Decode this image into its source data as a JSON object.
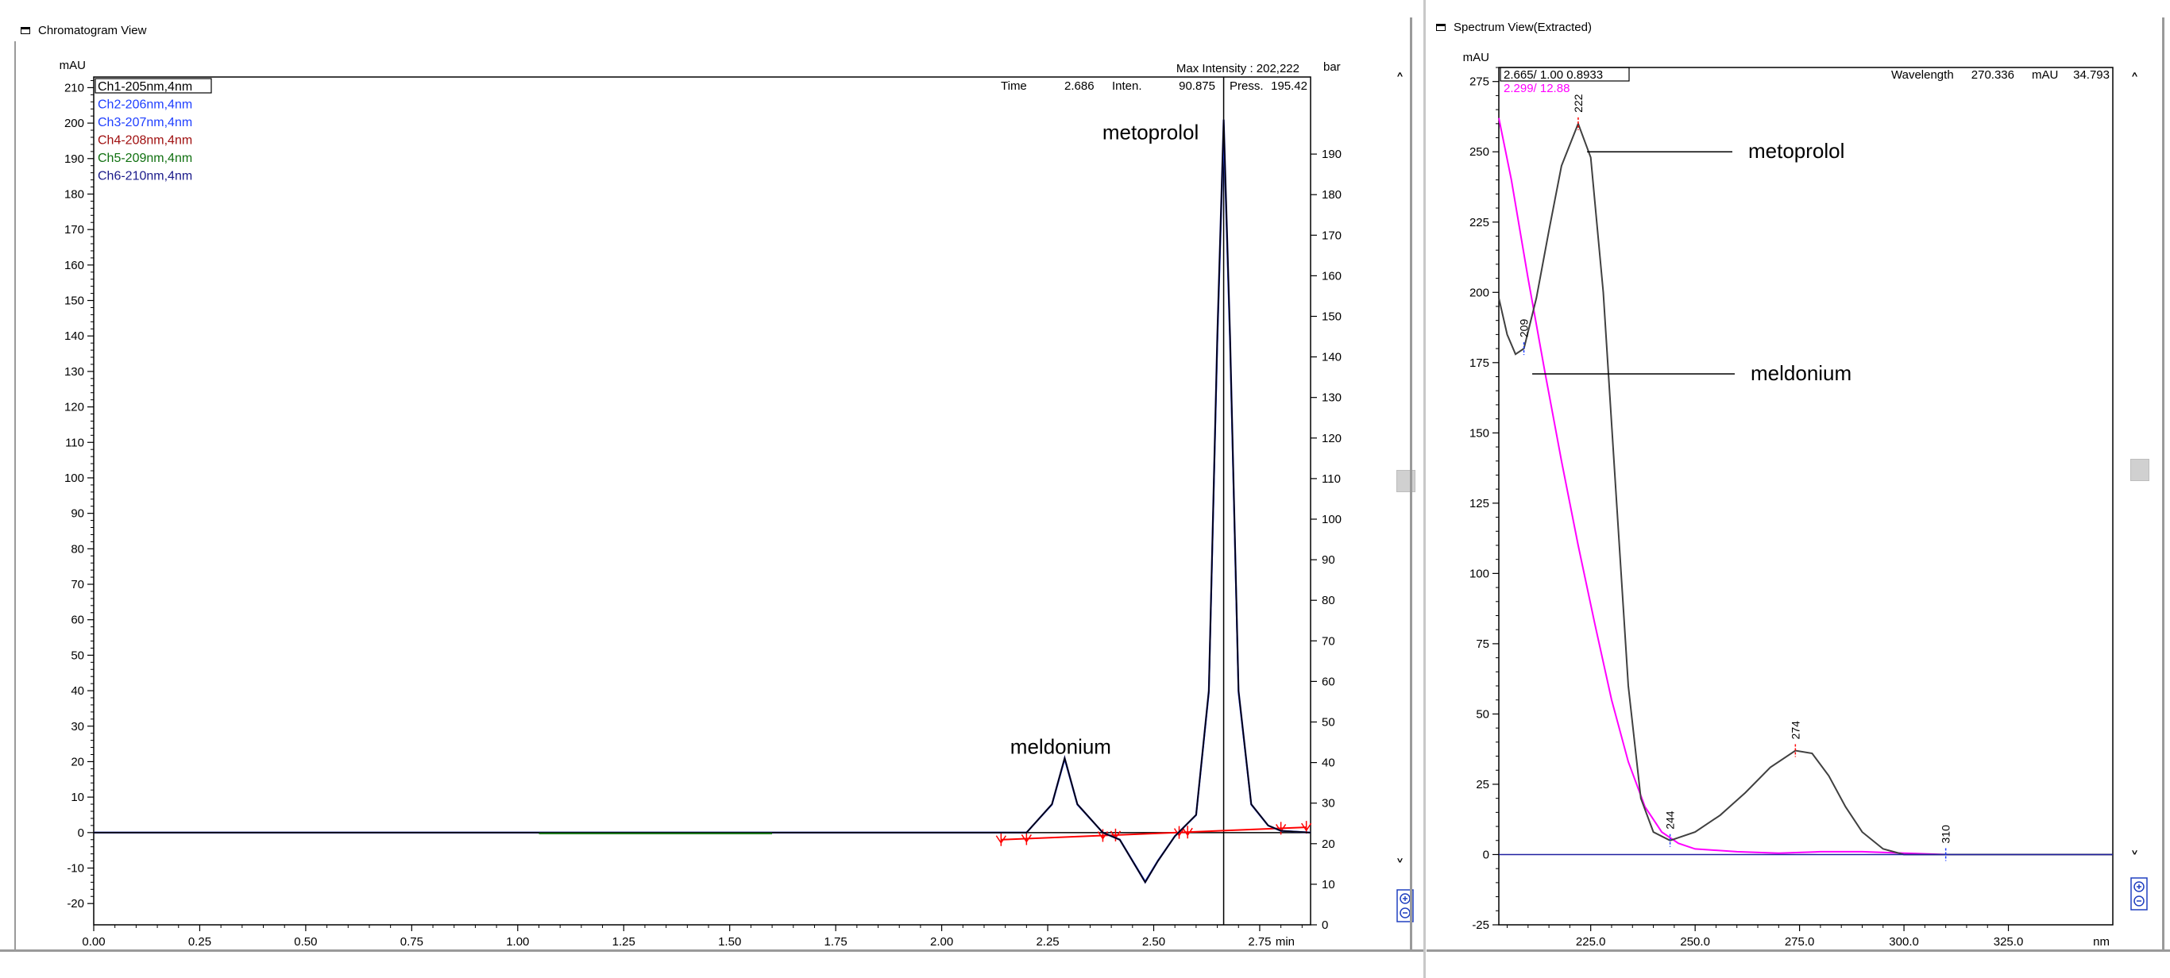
{
  "left_panel": {
    "title": "Chromatogram View",
    "y_unit": "mAU",
    "y2_unit": "bar",
    "x_unit": "min",
    "max_intensity": "Max Intensity : 202,222",
    "time_label": "Time",
    "time_value": "2.686",
    "inten_label": "Inten.",
    "inten_value": "90.875",
    "press_label": "Press.",
    "press_value": "195.42",
    "legend": [
      {
        "label": "Ch1-205nm,4nm",
        "color": "#000000"
      },
      {
        "label": "Ch2-206nm,4nm",
        "color": "#1f3fff"
      },
      {
        "label": "Ch3-207nm,4nm",
        "color": "#1f3fff"
      },
      {
        "label": "Ch4-208nm,4nm",
        "color": "#a01010"
      },
      {
        "label": "Ch5-209nm,4nm",
        "color": "#107010"
      },
      {
        "label": "Ch6-210nm,4nm",
        "color": "#1a1a8a"
      }
    ],
    "annotations": {
      "peak1": "meldonium",
      "peak2": "metoprolol"
    }
  },
  "right_panel": {
    "title": "Spectrum View(Extracted)",
    "y_unit": "mAU",
    "x_unit": "nm",
    "readout1": "2.665/ 1.00 0.8933",
    "readout2": "2.299/ 12.88",
    "readout2_color": "#ff00ff",
    "wavelength_label": "Wavelength",
    "wavelength_value": "270.336",
    "mau_label": "mAU",
    "mau_value": "34.793",
    "annotations": {
      "metoprolol": "metoprolol",
      "meldonium": "meldonium"
    },
    "peak_labels": [
      "209",
      "222",
      "244",
      "274",
      "310"
    ]
  },
  "controls": {
    "up_arrow": "˄",
    "down_arrow": "˅"
  },
  "colors": {
    "axis": "#000000",
    "trace": "#1a1a8a",
    "baseline": "#ff0000",
    "magenta": "#ff00ff",
    "frame": "#9a9a9a"
  },
  "chart_data": [
    {
      "type": "line",
      "title": "Chromatogram View",
      "xlabel": "min",
      "ylabel": "mAU",
      "y2label": "bar",
      "xlim": [
        0.0,
        2.87
      ],
      "ylim": [
        -26,
        213
      ],
      "y2lim": [
        0,
        195
      ],
      "x_ticks": [
        "0.00",
        "0.25",
        "0.50",
        "0.75",
        "1.00",
        "1.25",
        "1.50",
        "1.75",
        "2.00",
        "2.25",
        "2.50",
        "2.75"
      ],
      "y_ticks": [
        "-20",
        "-10",
        "0",
        "10",
        "20",
        "30",
        "40",
        "50",
        "60",
        "70",
        "80",
        "90",
        "100",
        "110",
        "120",
        "130",
        "140",
        "150",
        "160",
        "170",
        "180",
        "190",
        "200",
        "210"
      ],
      "y2_ticks": [
        "0",
        "10",
        "20",
        "30",
        "40",
        "50",
        "60",
        "70",
        "80",
        "90",
        "100",
        "110",
        "120",
        "130",
        "140",
        "150",
        "160",
        "170",
        "180",
        "190"
      ],
      "series": [
        {
          "name": "Ch1-205nm,4nm",
          "x": [
            0.0,
            1.0,
            2.0,
            2.2,
            2.26,
            2.29,
            2.32,
            2.38,
            2.42,
            2.45,
            2.48,
            2.51,
            2.55,
            2.6,
            2.63,
            2.65,
            2.665,
            2.68,
            2.7,
            2.73,
            2.77,
            2.8,
            2.87
          ],
          "y": [
            0,
            0,
            0,
            0,
            8,
            21,
            8,
            0,
            -2,
            -8,
            -14,
            -8,
            -1,
            5,
            40,
            140,
            201,
            140,
            40,
            8,
            2,
            0.5,
            0
          ]
        }
      ],
      "baseline_marks": [
        2.14,
        2.2,
        2.38,
        2.41,
        2.56,
        2.58,
        2.8,
        2.86
      ],
      "vertical_marker": 2.665,
      "annotations": [
        {
          "text": "meldonium",
          "x": 2.29,
          "y": 24
        },
        {
          "text": "metoprolol",
          "x": 2.665,
          "y": 195
        }
      ]
    },
    {
      "type": "line",
      "title": "Spectrum View(Extracted)",
      "xlabel": "nm",
      "ylabel": "mAU",
      "xlim": [
        203,
        350
      ],
      "ylim": [
        -25,
        280
      ],
      "x_ticks": [
        "225.0",
        "250.0",
        "275.0",
        "300.0",
        "325.0"
      ],
      "y_ticks": [
        "-25",
        "0",
        "25",
        "50",
        "75",
        "100",
        "125",
        "150",
        "175",
        "200",
        "225",
        "250",
        "275"
      ],
      "series": [
        {
          "name": "2.665/ 1.00 0.8933",
          "color": "#404040",
          "x": [
            203,
            205,
            207,
            209,
            212,
            215,
            218,
            222,
            225,
            228,
            231,
            234,
            237,
            240,
            244,
            250,
            256,
            262,
            268,
            274,
            278,
            282,
            286,
            290,
            295,
            300,
            310,
            320,
            330,
            340,
            350
          ],
          "y": [
            198,
            185,
            178,
            180,
            198,
            222,
            245,
            260,
            248,
            200,
            130,
            60,
            20,
            8,
            5,
            8,
            14,
            22,
            31,
            37,
            36,
            28,
            17,
            8,
            2,
            0,
            0,
            0,
            0,
            0,
            0
          ]
        },
        {
          "name": "2.299/ 12.88",
          "color": "#ff00ff",
          "x": [
            203,
            206,
            210,
            214,
            218,
            222,
            226,
            230,
            234,
            238,
            242,
            246,
            250,
            260,
            270,
            280,
            290,
            300,
            310,
            330,
            350
          ],
          "y": [
            262,
            240,
            205,
            172,
            140,
            110,
            82,
            55,
            33,
            17,
            8,
            4,
            2,
            1,
            0.5,
            1,
            1,
            0.5,
            0,
            0,
            0
          ]
        }
      ],
      "peak_marks": [
        {
          "label": "209",
          "x": 209,
          "y": 180
        },
        {
          "label": "222",
          "x": 222,
          "y": 260
        },
        {
          "label": "244",
          "x": 244,
          "y": 5
        },
        {
          "label": "274",
          "x": 274,
          "y": 37
        },
        {
          "label": "310",
          "x": 310,
          "y": 0
        }
      ],
      "annotations": [
        {
          "text": "metoprolol",
          "points_to": 222
        },
        {
          "text": "meldonium",
          "points_to": 209
        }
      ]
    }
  ]
}
